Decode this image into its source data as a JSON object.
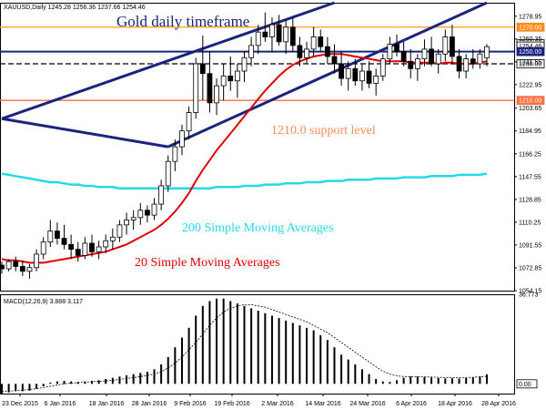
{
  "chart_data": {
    "type": "candlestick",
    "symbol_header": "XAUUSD,Daily  1245.28 1256.36 1237.66 1254.46",
    "title": "Gold daily timeframe",
    "x_tick_labels": [
      "23 Dec 2015",
      "6 Jan 2016",
      "18 Jan 2016",
      "28 Jan 2016",
      "9 Feb 2016",
      "19 Feb 2016",
      "2 Mar 2016",
      "14 Mar 2016",
      "24 Mar 2016",
      "6 Apr 2016",
      "18 Apr 2016",
      "28 Apr 2016"
    ],
    "y_tick_labels": [
      "1278.95",
      "1260.35",
      "1241.55",
      "1222.95",
      "1203.65",
      "1184.95",
      "1166.25",
      "1147.55",
      "1128.85",
      "1110.25",
      "1091.55",
      "1072.85",
      "1054.15"
    ],
    "ylim": [
      1054.15,
      1290
    ],
    "price_labels": [
      {
        "text": "1270.00",
        "value": 1270.0,
        "color": "#ff8c1a"
      },
      {
        "text": "1256.35",
        "value": 1256.35,
        "color": "#000000"
      },
      {
        "text": "1254.46",
        "value": 1254.46,
        "color": "#000000"
      },
      {
        "text": "1250.00",
        "value": 1250.0,
        "color": "#1a237e"
      },
      {
        "text": "1240.00",
        "value": 1240.0,
        "color": "#000000"
      },
      {
        "text": "1210.00",
        "value": 1210.0,
        "color": "#ff7043"
      }
    ],
    "horizontal_levels": [
      {
        "value": 1270.0,
        "color": "#ffa726",
        "style": "solid"
      },
      {
        "value": 1250.0,
        "color": "#1a237e",
        "style": "solid"
      },
      {
        "value": 1240.0,
        "color": "#000000",
        "style": "dashed"
      },
      {
        "value": 1210.0,
        "color": "#ff7043",
        "style": "solid"
      }
    ],
    "annotations": [
      {
        "text": "1210.0 support level",
        "color": "#ff8c5a"
      },
      {
        "text": "200 Simple Moving Averages",
        "color": "#26d9e8"
      },
      {
        "text": "20 Simple Moving Averages",
        "color": "#e00000"
      }
    ],
    "ohlc": [
      [
        1075,
        1078,
        1068,
        1072
      ],
      [
        1072,
        1080,
        1070,
        1078
      ],
      [
        1078,
        1082,
        1070,
        1074
      ],
      [
        1074,
        1079,
        1066,
        1070
      ],
      [
        1070,
        1076,
        1064,
        1073
      ],
      [
        1073,
        1088,
        1070,
        1084
      ],
      [
        1084,
        1098,
        1080,
        1094
      ],
      [
        1094,
        1112,
        1090,
        1103
      ],
      [
        1103,
        1110,
        1092,
        1097
      ],
      [
        1097,
        1108,
        1088,
        1092
      ],
      [
        1092,
        1100,
        1080,
        1088
      ],
      [
        1088,
        1094,
        1078,
        1083
      ],
      [
        1083,
        1098,
        1080,
        1093
      ],
      [
        1093,
        1100,
        1082,
        1086
      ],
      [
        1086,
        1095,
        1080,
        1090
      ],
      [
        1090,
        1100,
        1085,
        1095
      ],
      [
        1095,
        1105,
        1088,
        1098
      ],
      [
        1098,
        1112,
        1094,
        1108
      ],
      [
        1108,
        1118,
        1100,
        1112
      ],
      [
        1112,
        1120,
        1104,
        1114
      ],
      [
        1114,
        1126,
        1108,
        1120
      ],
      [
        1120,
        1124,
        1110,
        1116
      ],
      [
        1116,
        1130,
        1112,
        1125
      ],
      [
        1125,
        1145,
        1120,
        1140
      ],
      [
        1140,
        1165,
        1135,
        1160
      ],
      [
        1160,
        1178,
        1152,
        1172
      ],
      [
        1172,
        1190,
        1165,
        1185
      ],
      [
        1185,
        1205,
        1178,
        1200
      ],
      [
        1200,
        1245,
        1195,
        1240
      ],
      [
        1240,
        1263,
        1210,
        1232
      ],
      [
        1232,
        1250,
        1200,
        1208
      ],
      [
        1208,
        1228,
        1198,
        1222
      ],
      [
        1222,
        1240,
        1210,
        1230
      ],
      [
        1230,
        1246,
        1218,
        1226
      ],
      [
        1226,
        1240,
        1212,
        1234
      ],
      [
        1234,
        1250,
        1225,
        1245
      ],
      [
        1245,
        1262,
        1238,
        1255
      ],
      [
        1255,
        1272,
        1248,
        1266
      ],
      [
        1266,
        1282,
        1258,
        1262
      ],
      [
        1262,
        1278,
        1250,
        1272
      ],
      [
        1272,
        1280,
        1255,
        1258
      ],
      [
        1258,
        1276,
        1248,
        1270
      ],
      [
        1270,
        1278,
        1250,
        1255
      ],
      [
        1255,
        1262,
        1238,
        1245
      ],
      [
        1245,
        1258,
        1240,
        1252
      ],
      [
        1252,
        1270,
        1246,
        1262
      ],
      [
        1262,
        1268,
        1250,
        1254
      ],
      [
        1254,
        1262,
        1240,
        1246
      ],
      [
        1246,
        1256,
        1232,
        1240
      ],
      [
        1240,
        1250,
        1222,
        1228
      ],
      [
        1228,
        1242,
        1218,
        1236
      ],
      [
        1236,
        1244,
        1222,
        1226
      ],
      [
        1226,
        1240,
        1218,
        1234
      ],
      [
        1234,
        1242,
        1220,
        1224
      ],
      [
        1224,
        1236,
        1214,
        1230
      ],
      [
        1230,
        1248,
        1226,
        1244
      ],
      [
        1244,
        1262,
        1240,
        1256
      ],
      [
        1256,
        1264,
        1246,
        1250
      ],
      [
        1250,
        1258,
        1238,
        1242
      ],
      [
        1242,
        1252,
        1228,
        1236
      ],
      [
        1236,
        1248,
        1226,
        1244
      ],
      [
        1244,
        1260,
        1238,
        1252
      ],
      [
        1252,
        1262,
        1238,
        1240
      ],
      [
        1240,
        1252,
        1232,
        1248
      ],
      [
        1248,
        1268,
        1242,
        1262
      ],
      [
        1262,
        1272,
        1240,
        1246
      ],
      [
        1246,
        1252,
        1228,
        1234
      ],
      [
        1234,
        1248,
        1228,
        1244
      ],
      [
        1244,
        1252,
        1236,
        1240
      ],
      [
        1240,
        1252,
        1236,
        1248
      ],
      [
        1245,
        1256,
        1238,
        1254
      ]
    ],
    "sma20": [
      1080,
      1079,
      1079,
      1078,
      1077,
      1077,
      1077,
      1078,
      1079,
      1080,
      1081,
      1082,
      1083,
      1084,
      1085,
      1086,
      1088,
      1090,
      1092,
      1095,
      1098,
      1101,
      1104,
      1108,
      1113,
      1119,
      1126,
      1134,
      1144,
      1153,
      1161,
      1169,
      1176,
      1183,
      1190,
      1197,
      1204,
      1211,
      1218,
      1224,
      1230,
      1235,
      1239,
      1242,
      1244,
      1246,
      1247,
      1248,
      1248,
      1248,
      1247,
      1246,
      1245,
      1244,
      1243,
      1242,
      1242,
      1242,
      1242,
      1241,
      1241,
      1241,
      1241,
      1240,
      1241,
      1241,
      1240,
      1240,
      1240,
      1241,
      1242
    ],
    "sma200": [
      1150,
      1149,
      1148,
      1147,
      1146,
      1145,
      1144,
      1143,
      1143,
      1142,
      1141,
      1141,
      1140,
      1140,
      1139,
      1139,
      1139,
      1138,
      1138,
      1138,
      1138,
      1138,
      1138,
      1138,
      1138,
      1138,
      1138,
      1138,
      1138,
      1138,
      1138,
      1139,
      1139,
      1139,
      1139,
      1140,
      1140,
      1140,
      1141,
      1141,
      1141,
      1142,
      1142,
      1142,
      1143,
      1143,
      1143,
      1144,
      1144,
      1144,
      1145,
      1145,
      1145,
      1145,
      1146,
      1146,
      1146,
      1146,
      1147,
      1147,
      1147,
      1147,
      1148,
      1148,
      1148,
      1148,
      1149,
      1149,
      1149,
      1149,
      1150
    ],
    "channels": [
      {
        "name": "upper",
        "color": "#1a237e",
        "points": [
          [
            0,
            1195
          ],
          [
            48,
            1290
          ]
        ]
      },
      {
        "name": "lower",
        "color": "#1a237e",
        "points": [
          [
            24,
            1172
          ],
          [
            70,
            1290
          ]
        ]
      },
      {
        "name": "left-bound",
        "color": "#1a237e",
        "points": [
          [
            0,
            1195
          ],
          [
            24,
            1172
          ]
        ]
      }
    ],
    "macd": {
      "label": "MACD(12,26,9) 3.888 3.117",
      "ylim": [
        -4,
        36.773
      ],
      "y_tick_labels": [
        "36.773",
        "0.00"
      ],
      "histogram": [
        -4,
        -3.5,
        -3,
        -3,
        -2.8,
        -2,
        -1,
        0.5,
        1,
        1.2,
        1,
        0.8,
        1,
        1.2,
        1.5,
        2,
        2.5,
        3,
        3.5,
        4,
        4.5,
        5,
        6,
        8,
        11,
        15,
        19,
        23,
        28,
        32,
        34,
        35,
        35,
        34,
        33,
        32,
        31,
        30,
        29,
        28,
        27,
        26,
        25,
        24,
        23,
        22,
        20,
        18,
        15,
        12,
        10,
        8,
        6,
        4,
        2,
        1,
        0.8,
        1.5,
        2.5,
        3,
        3,
        2.8,
        2.6,
        2.4,
        2.2,
        2.3,
        2.2,
        2.4,
        2.6,
        3,
        3.9
      ],
      "signal": [
        -3,
        -3,
        -2.8,
        -2.6,
        -2.3,
        -2,
        -1.5,
        -1,
        -0.5,
        0,
        0.3,
        0.5,
        0.7,
        0.9,
        1,
        1.2,
        1.5,
        1.8,
        2.2,
        2.6,
        3,
        3.5,
        4,
        5,
        6.5,
        8.5,
        11,
        14,
        17,
        20.5,
        24,
        27,
        29.5,
        31,
        32,
        32.5,
        32.5,
        32,
        31.5,
        30.5,
        29.5,
        28.5,
        27.5,
        26.5,
        25.5,
        24,
        22.5,
        21,
        19,
        17,
        15,
        13,
        11,
        9,
        7,
        5.2,
        4,
        3.3,
        3,
        2.9,
        2.9,
        2.9,
        2.8,
        2.7,
        2.6,
        2.6,
        2.6,
        2.6,
        2.7,
        2.9,
        3.1
      ]
    }
  }
}
